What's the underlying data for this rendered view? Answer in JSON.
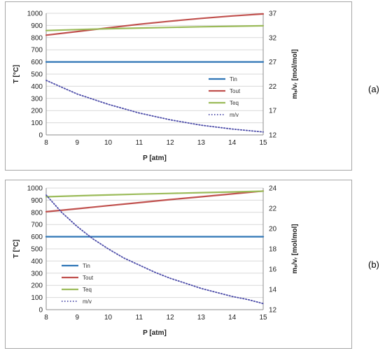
{
  "chart_data": [
    {
      "type": "line",
      "panel_label": "(a)",
      "xlabel": "P [atm]",
      "ylabel": "T [°C]",
      "y2label": "mₛ/vᵣ [mol/mol]",
      "xlim": [
        8,
        15
      ],
      "xticks": [
        8,
        9,
        10,
        11,
        12,
        13,
        14,
        15
      ],
      "ylim": [
        0,
        1000
      ],
      "yticks": [
        0,
        100,
        200,
        300,
        400,
        500,
        600,
        700,
        800,
        900,
        1000
      ],
      "y2lim": [
        12,
        37
      ],
      "y2ticks": [
        12,
        17,
        22,
        27,
        32,
        37
      ],
      "grid": true,
      "legend": "center-right",
      "series": [
        {
          "name": "Tin",
          "axis": "left",
          "style": "solid",
          "color": "#2e75b6",
          "x": [
            8,
            15
          ],
          "y": [
            600,
            600
          ]
        },
        {
          "name": "Tout",
          "axis": "left",
          "style": "solid",
          "color": "#c0504d",
          "x": [
            8,
            9,
            10,
            11,
            12,
            13,
            14,
            15
          ],
          "y": [
            820,
            850,
            880,
            910,
            935,
            958,
            978,
            995
          ]
        },
        {
          "name": "Teq",
          "axis": "left",
          "style": "solid",
          "color": "#9bbb59",
          "x": [
            8,
            9,
            10,
            11,
            12,
            13,
            14,
            15
          ],
          "y": [
            858,
            866,
            873,
            879,
            884,
            889,
            893,
            897
          ]
        },
        {
          "name": "m/v",
          "axis": "right",
          "style": "dotted",
          "color": "#4b4ba8",
          "x": [
            8,
            9,
            10,
            11,
            12,
            13,
            14,
            15
          ],
          "y": [
            23.2,
            20.4,
            18.3,
            16.5,
            15.1,
            14.0,
            13.2,
            12.6
          ]
        }
      ]
    },
    {
      "type": "line",
      "panel_label": "(b)",
      "xlabel": "P [atm]",
      "ylabel": "T [°C]",
      "y2label": "mₛ/vᵣ [mol/mol]",
      "xlim": [
        8,
        15
      ],
      "xticks": [
        8,
        9,
        10,
        11,
        12,
        13,
        14,
        15
      ],
      "ylim": [
        0,
        1000
      ],
      "yticks": [
        0,
        100,
        200,
        300,
        400,
        500,
        600,
        700,
        800,
        900,
        1000
      ],
      "y2lim": [
        12,
        24
      ],
      "y2ticks": [
        12,
        14,
        16,
        18,
        20,
        22,
        24
      ],
      "grid": true,
      "legend": "bottom-left",
      "series": [
        {
          "name": "Tin",
          "axis": "left",
          "style": "solid",
          "color": "#2e75b6",
          "x": [
            8,
            15
          ],
          "y": [
            600,
            600
          ]
        },
        {
          "name": "Tout",
          "axis": "left",
          "style": "solid",
          "color": "#c0504d",
          "x": [
            8,
            9,
            10,
            11,
            12,
            13,
            14,
            15
          ],
          "y": [
            805,
            830,
            855,
            880,
            905,
            928,
            952,
            975
          ]
        },
        {
          "name": "Teq",
          "axis": "left",
          "style": "solid",
          "color": "#9bbb59",
          "x": [
            8,
            9,
            10,
            11,
            12,
            13,
            14,
            15
          ],
          "y": [
            928,
            936,
            943,
            950,
            956,
            962,
            968,
            974
          ]
        },
        {
          "name": "m/v",
          "axis": "right",
          "style": "dotted",
          "color": "#4b4ba8",
          "x": [
            8,
            8.5,
            9,
            9.5,
            10,
            10.5,
            11,
            11.5,
            12,
            12.5,
            13,
            13.5,
            14,
            14.5,
            15
          ],
          "y": [
            23.3,
            21.6,
            20.2,
            19.0,
            18.0,
            17.1,
            16.4,
            15.7,
            15.1,
            14.6,
            14.1,
            13.7,
            13.3,
            13.0,
            12.6
          ]
        }
      ]
    }
  ]
}
